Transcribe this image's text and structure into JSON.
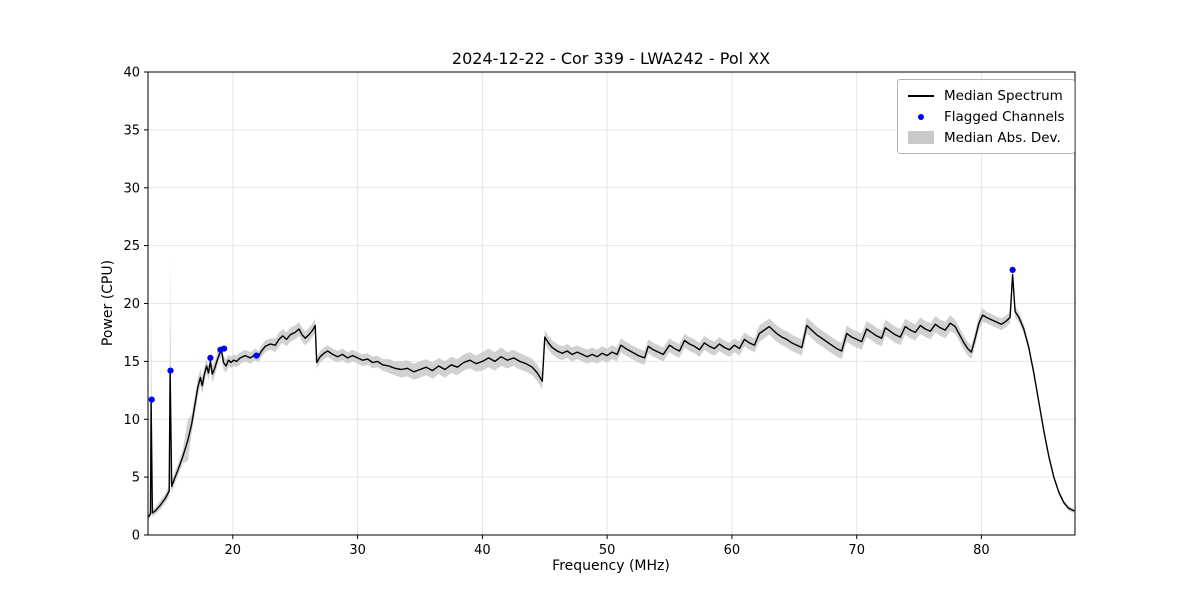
{
  "chart_data": {
    "type": "line",
    "title": "2024-12-22 - Cor 339 - LWA242 - Pol XX",
    "xlabel": "Frequency (MHz)",
    "ylabel": "Power (CPU)",
    "xlim": [
      13.2,
      87.5
    ],
    "ylim": [
      0,
      40
    ],
    "xticks": [
      20,
      30,
      40,
      50,
      60,
      70,
      80
    ],
    "yticks": [
      0,
      5,
      10,
      15,
      20,
      25,
      30,
      35,
      40
    ],
    "grid": true,
    "legend_position": "upper right",
    "colors": {
      "line": "#000000",
      "flagged": "#0000ff",
      "band": "#c9c9c9",
      "grid": "#e6e6e6",
      "axis": "#000000",
      "background": "#ffffff"
    },
    "legend": {
      "entries": [
        {
          "label": "Median Spectrum",
          "type": "line"
        },
        {
          "label": "Flagged Channels",
          "type": "marker"
        },
        {
          "label": "Median Abs. Dev.",
          "type": "patch"
        }
      ]
    },
    "point_format": [
      "freq_mhz",
      "power_cpu",
      "mad"
    ],
    "points": [
      [
        13.25,
        1.6,
        0.3
      ],
      [
        13.4,
        1.8,
        0.3
      ],
      [
        13.45,
        11.6,
        8.4
      ],
      [
        13.55,
        1.9,
        0.3
      ],
      [
        13.8,
        2.1,
        0.3
      ],
      [
        14.2,
        2.6,
        0.4
      ],
      [
        14.6,
        3.2,
        0.4
      ],
      [
        14.9,
        3.8,
        0.5
      ],
      [
        14.97,
        14.2,
        9.5
      ],
      [
        15.1,
        4.2,
        0.5
      ],
      [
        15.3,
        4.8,
        0.5
      ],
      [
        15.6,
        5.6,
        0.5
      ],
      [
        16.0,
        6.8,
        0.6
      ],
      [
        16.4,
        8.2,
        1.8
      ],
      [
        16.7,
        9.6,
        0.8
      ],
      [
        17.0,
        11.5,
        0.8
      ],
      [
        17.2,
        12.8,
        0.8
      ],
      [
        17.4,
        13.6,
        0.7
      ],
      [
        17.55,
        12.9,
        0.7
      ],
      [
        17.7,
        13.8,
        0.7
      ],
      [
        17.9,
        14.6,
        0.6
      ],
      [
        18.05,
        14.0,
        0.6
      ],
      [
        18.2,
        15.0,
        0.6
      ],
      [
        18.35,
        13.9,
        0.7
      ],
      [
        18.55,
        14.4,
        0.6
      ],
      [
        18.75,
        15.1,
        0.6
      ],
      [
        18.95,
        15.7,
        0.5
      ],
      [
        19.1,
        15.9,
        0.5
      ],
      [
        19.25,
        14.9,
        0.6
      ],
      [
        19.45,
        14.6,
        0.6
      ],
      [
        19.65,
        15.1,
        0.5
      ],
      [
        19.85,
        14.9,
        0.5
      ],
      [
        20.05,
        15.1,
        0.5
      ],
      [
        20.3,
        15.0,
        0.5
      ],
      [
        20.6,
        15.3,
        0.5
      ],
      [
        21.0,
        15.5,
        0.5
      ],
      [
        21.4,
        15.3,
        0.5
      ],
      [
        21.8,
        15.6,
        0.5
      ],
      [
        22.05,
        15.4,
        0.5
      ],
      [
        22.3,
        15.9,
        0.5
      ],
      [
        22.6,
        16.3,
        0.5
      ],
      [
        23.0,
        16.5,
        0.5
      ],
      [
        23.4,
        16.4,
        0.6
      ],
      [
        23.7,
        16.9,
        0.6
      ],
      [
        24.0,
        17.2,
        0.6
      ],
      [
        24.3,
        16.9,
        0.6
      ],
      [
        24.6,
        17.3,
        0.6
      ],
      [
        25.0,
        17.5,
        0.6
      ],
      [
        25.3,
        17.8,
        0.6
      ],
      [
        25.55,
        17.3,
        0.6
      ],
      [
        25.8,
        17.0,
        0.6
      ],
      [
        26.1,
        17.3,
        0.6
      ],
      [
        26.4,
        17.7,
        0.6
      ],
      [
        26.6,
        18.1,
        0.6
      ],
      [
        26.72,
        14.9,
        0.5
      ],
      [
        27.0,
        15.4,
        0.5
      ],
      [
        27.3,
        15.7,
        0.5
      ],
      [
        27.6,
        15.9,
        0.5
      ],
      [
        28.0,
        15.6,
        0.5
      ],
      [
        28.4,
        15.4,
        0.5
      ],
      [
        28.8,
        15.6,
        0.5
      ],
      [
        29.2,
        15.3,
        0.5
      ],
      [
        29.6,
        15.5,
        0.5
      ],
      [
        30.0,
        15.3,
        0.5
      ],
      [
        30.4,
        15.1,
        0.5
      ],
      [
        30.8,
        15.2,
        0.5
      ],
      [
        31.2,
        14.9,
        0.5
      ],
      [
        31.6,
        15.0,
        0.5
      ],
      [
        32.0,
        14.7,
        0.5
      ],
      [
        32.5,
        14.6,
        0.6
      ],
      [
        33.0,
        14.4,
        0.6
      ],
      [
        33.5,
        14.3,
        0.7
      ],
      [
        34.0,
        14.4,
        0.7
      ],
      [
        34.5,
        14.1,
        0.7
      ],
      [
        35.0,
        14.3,
        0.7
      ],
      [
        35.5,
        14.5,
        0.7
      ],
      [
        36.0,
        14.2,
        0.7
      ],
      [
        36.5,
        14.6,
        0.7
      ],
      [
        37.0,
        14.3,
        0.7
      ],
      [
        37.5,
        14.7,
        0.7
      ],
      [
        38.0,
        14.5,
        0.7
      ],
      [
        38.5,
        14.9,
        0.7
      ],
      [
        39.0,
        15.1,
        0.7
      ],
      [
        39.5,
        14.8,
        0.7
      ],
      [
        40.0,
        15.0,
        0.8
      ],
      [
        40.5,
        15.3,
        0.8
      ],
      [
        41.0,
        15.0,
        0.8
      ],
      [
        41.5,
        15.4,
        0.8
      ],
      [
        42.0,
        15.1,
        0.7
      ],
      [
        42.5,
        15.3,
        0.7
      ],
      [
        43.0,
        15.0,
        0.7
      ],
      [
        43.5,
        14.8,
        0.7
      ],
      [
        44.0,
        14.5,
        0.7
      ],
      [
        44.4,
        14.0,
        0.7
      ],
      [
        44.8,
        13.3,
        0.7
      ],
      [
        45.0,
        17.1,
        0.6
      ],
      [
        45.3,
        16.6,
        0.6
      ],
      [
        45.6,
        16.2,
        0.6
      ],
      [
        46.0,
        15.9,
        0.6
      ],
      [
        46.4,
        15.7,
        0.6
      ],
      [
        46.8,
        15.9,
        0.6
      ],
      [
        47.2,
        15.6,
        0.6
      ],
      [
        47.6,
        15.8,
        0.6
      ],
      [
        48.0,
        15.6,
        0.6
      ],
      [
        48.4,
        15.4,
        0.6
      ],
      [
        48.8,
        15.6,
        0.6
      ],
      [
        49.2,
        15.4,
        0.6
      ],
      [
        49.6,
        15.7,
        0.6
      ],
      [
        50.0,
        15.5,
        0.6
      ],
      [
        50.4,
        15.8,
        0.6
      ],
      [
        50.8,
        15.6,
        0.6
      ],
      [
        51.1,
        16.4,
        0.6
      ],
      [
        51.5,
        16.1,
        0.6
      ],
      [
        52.0,
        15.8,
        0.6
      ],
      [
        52.5,
        15.5,
        0.6
      ],
      [
        53.0,
        15.3,
        0.6
      ],
      [
        53.3,
        16.3,
        0.6
      ],
      [
        53.7,
        16.0,
        0.6
      ],
      [
        54.1,
        15.8,
        0.6
      ],
      [
        54.5,
        15.6,
        0.6
      ],
      [
        55.0,
        16.4,
        0.6
      ],
      [
        55.4,
        16.1,
        0.6
      ],
      [
        55.8,
        15.9,
        0.6
      ],
      [
        56.2,
        16.8,
        0.6
      ],
      [
        56.6,
        16.5,
        0.6
      ],
      [
        57.0,
        16.3,
        0.6
      ],
      [
        57.4,
        16.0,
        0.6
      ],
      [
        57.8,
        16.6,
        0.6
      ],
      [
        58.2,
        16.3,
        0.6
      ],
      [
        58.6,
        16.1,
        0.6
      ],
      [
        59.0,
        16.5,
        0.6
      ],
      [
        59.4,
        16.2,
        0.6
      ],
      [
        59.8,
        16.0,
        0.6
      ],
      [
        60.2,
        16.4,
        0.6
      ],
      [
        60.6,
        16.1,
        0.6
      ],
      [
        61.0,
        16.9,
        0.6
      ],
      [
        61.4,
        16.6,
        0.6
      ],
      [
        61.8,
        16.4,
        0.6
      ],
      [
        62.2,
        17.4,
        0.7
      ],
      [
        62.6,
        17.7,
        0.7
      ],
      [
        63.0,
        18.0,
        0.7
      ],
      [
        63.3,
        17.7,
        0.7
      ],
      [
        63.6,
        17.4,
        0.7
      ],
      [
        64.0,
        17.1,
        0.7
      ],
      [
        64.4,
        16.9,
        0.7
      ],
      [
        64.8,
        16.6,
        0.7
      ],
      [
        65.2,
        16.4,
        0.7
      ],
      [
        65.6,
        16.2,
        0.7
      ],
      [
        66.0,
        18.1,
        0.7
      ],
      [
        66.4,
        17.7,
        0.7
      ],
      [
        66.8,
        17.3,
        0.7
      ],
      [
        67.2,
        17.0,
        0.7
      ],
      [
        67.6,
        16.7,
        0.7
      ],
      [
        68.0,
        16.4,
        0.7
      ],
      [
        68.4,
        16.1,
        0.7
      ],
      [
        68.8,
        15.9,
        0.7
      ],
      [
        69.2,
        17.4,
        0.7
      ],
      [
        69.6,
        17.1,
        0.7
      ],
      [
        70.0,
        16.9,
        0.7
      ],
      [
        70.4,
        16.7,
        0.7
      ],
      [
        70.8,
        17.8,
        0.7
      ],
      [
        71.2,
        17.5,
        0.7
      ],
      [
        71.6,
        17.2,
        0.7
      ],
      [
        72.0,
        17.0,
        0.7
      ],
      [
        72.3,
        17.9,
        0.7
      ],
      [
        72.7,
        17.6,
        0.7
      ],
      [
        73.1,
        17.3,
        0.7
      ],
      [
        73.5,
        17.1,
        0.7
      ],
      [
        73.9,
        18.0,
        0.7
      ],
      [
        74.3,
        17.7,
        0.7
      ],
      [
        74.7,
        17.5,
        0.7
      ],
      [
        75.1,
        18.1,
        0.7
      ],
      [
        75.5,
        17.8,
        0.7
      ],
      [
        75.9,
        17.6,
        0.7
      ],
      [
        76.3,
        18.2,
        0.7
      ],
      [
        76.7,
        17.9,
        0.7
      ],
      [
        77.1,
        17.7,
        0.7
      ],
      [
        77.5,
        18.3,
        0.7
      ],
      [
        77.9,
        18.0,
        0.6
      ],
      [
        78.3,
        17.2,
        0.6
      ],
      [
        78.6,
        16.6,
        0.6
      ],
      [
        78.9,
        16.1,
        0.6
      ],
      [
        79.2,
        15.8,
        0.6
      ],
      [
        79.5,
        17.0,
        0.6
      ],
      [
        79.8,
        18.3,
        0.6
      ],
      [
        80.1,
        19.0,
        0.6
      ],
      [
        80.4,
        18.8,
        0.5
      ],
      [
        80.8,
        18.6,
        0.5
      ],
      [
        81.2,
        18.4,
        0.5
      ],
      [
        81.6,
        18.2,
        0.5
      ],
      [
        82.0,
        18.5,
        0.5
      ],
      [
        82.3,
        18.8,
        0.5
      ],
      [
        82.5,
        22.5,
        0.5
      ],
      [
        82.7,
        19.3,
        0.5
      ],
      [
        83.0,
        18.8,
        0.4
      ],
      [
        83.4,
        17.8,
        0.4
      ],
      [
        83.8,
        16.2,
        0.4
      ],
      [
        84.2,
        14.0,
        0.3
      ],
      [
        84.6,
        11.5,
        0.3
      ],
      [
        85.0,
        9.0,
        0.3
      ],
      [
        85.4,
        6.8,
        0.2
      ],
      [
        85.8,
        5.0,
        0.2
      ],
      [
        86.2,
        3.7,
        0.2
      ],
      [
        86.6,
        2.8,
        0.2
      ],
      [
        87.0,
        2.3,
        0.2
      ],
      [
        87.4,
        2.1,
        0.2
      ]
    ],
    "flagged_point_format": [
      "freq_mhz",
      "power_cpu"
    ],
    "flagged": [
      [
        13.5,
        11.7
      ],
      [
        15.0,
        14.2
      ],
      [
        18.2,
        15.3
      ],
      [
        19.0,
        16.0
      ],
      [
        19.3,
        16.1
      ],
      [
        21.9,
        15.5
      ],
      [
        82.5,
        22.9
      ]
    ]
  }
}
